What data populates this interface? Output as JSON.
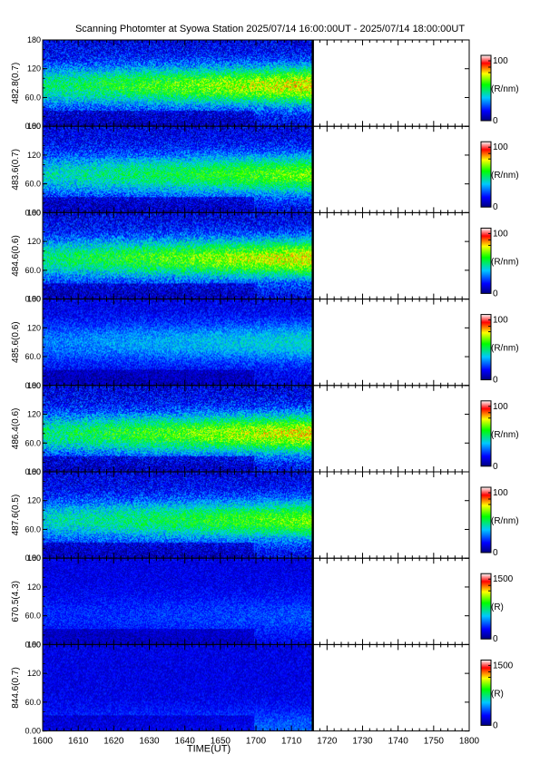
{
  "title": "Scanning Photomter at Syowa Station 2025/07/14 16:00:00UT - 2025/07/14 18:00:00UT",
  "chart_data": {
    "type": "heatmap",
    "title": "Scanning Photomter at Syowa Station 2025/07/14 16:00:00UT - 2025/07/14 18:00:00UT",
    "xlabel": "TIME(UT)",
    "x_ticks": [
      "1600",
      "1610",
      "1620",
      "1630",
      "1640",
      "1650",
      "1700",
      "1710",
      "1720",
      "1730",
      "1740",
      "1750",
      "1800"
    ],
    "xlim_hhmm": [
      "1600",
      "1800"
    ],
    "data_end_hhmm": "1716",
    "y_ticks": [
      "0.00",
      "60.0",
      "120",
      "180"
    ],
    "ylim": [
      0,
      180
    ],
    "colors": {
      "low": "#00007f",
      "mid": "#00ff00",
      "high": "#ff0000",
      "max": "#ffffff"
    },
    "panels": [
      {
        "ylabel": "482.8(0.7)",
        "cbar_max": "100",
        "cbar_min": "0",
        "cbar_unit": "(R/nm)",
        "intensity": 0.55,
        "band_y": 85
      },
      {
        "ylabel": "483.6(0.7)",
        "cbar_max": "100",
        "cbar_min": "0",
        "cbar_unit": "(R/nm)",
        "intensity": 0.45,
        "band_y": 80
      },
      {
        "ylabel": "484.6(0.6)",
        "cbar_max": "100",
        "cbar_min": "0",
        "cbar_unit": "(R/nm)",
        "intensity": 0.55,
        "band_y": 85
      },
      {
        "ylabel": "485.6(0.6)",
        "cbar_max": "100",
        "cbar_min": "0",
        "cbar_unit": "(R/nm)",
        "intensity": 0.25,
        "band_y": 90
      },
      {
        "ylabel": "486.4(0.6)",
        "cbar_max": "100",
        "cbar_min": "0",
        "cbar_unit": "(R/nm)",
        "intensity": 0.55,
        "band_y": 80
      },
      {
        "ylabel": "487.6(0.5)",
        "cbar_max": "100",
        "cbar_min": "0",
        "cbar_unit": "(R/nm)",
        "intensity": 0.45,
        "band_y": 80
      },
      {
        "ylabel": "670.5(4.3)",
        "cbar_max": "1500",
        "cbar_min": "0",
        "cbar_unit": "(R)",
        "intensity": 0.1,
        "band_y": 60
      },
      {
        "ylabel": "844.6(0.7)",
        "cbar_max": "1500",
        "cbar_min": "0",
        "cbar_unit": "(R)",
        "intensity": 0.12,
        "band_y": 5
      }
    ]
  }
}
